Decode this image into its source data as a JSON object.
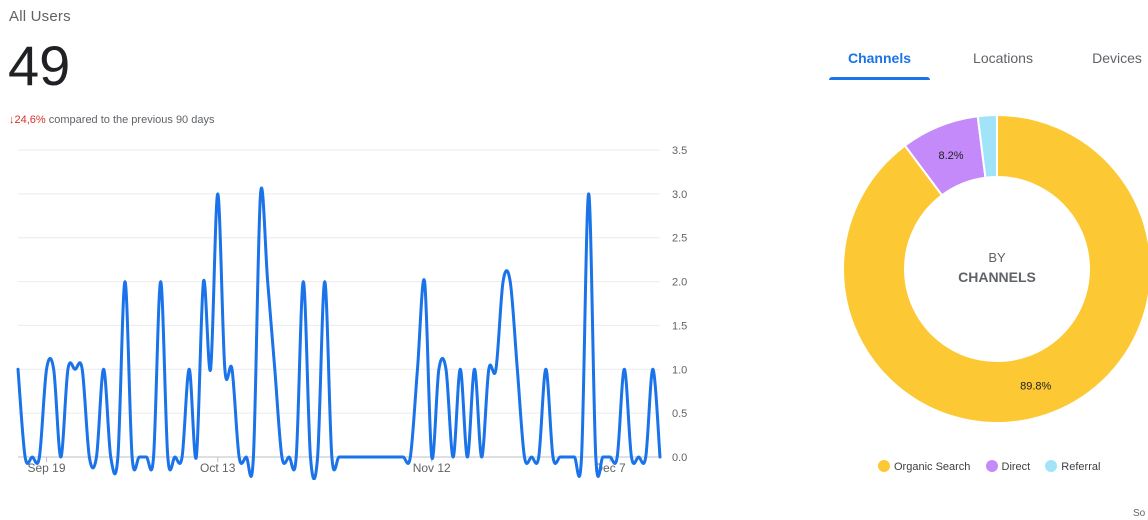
{
  "summary": {
    "label": "All Users",
    "value": "49",
    "delta_arrow": "↓",
    "delta_value": "24,6%",
    "delta_text": " compared to the previous 90 days"
  },
  "tabs": [
    {
      "label": "Channels",
      "active": true
    },
    {
      "label": "Locations",
      "active": false
    },
    {
      "label": "Devices",
      "active": false
    }
  ],
  "footer": {
    "text": "So"
  },
  "colors": {
    "line": "#1a73e8",
    "accent": "#1a73e8",
    "negative": "#d93025"
  },
  "chart_data": [
    {
      "type": "line",
      "title": "",
      "xlabel": "",
      "ylabel": "",
      "ylim": [
        0,
        3.5
      ],
      "yticks": [
        {
          "value": 0,
          "label": "0.0"
        },
        {
          "value": 0.5,
          "label": "0.5"
        },
        {
          "value": 1,
          "label": "1.0"
        },
        {
          "value": 1.5,
          "label": "1.5"
        },
        {
          "value": 2,
          "label": "2.0"
        },
        {
          "value": 2.5,
          "label": "2.5"
        },
        {
          "value": 3,
          "label": "3.0"
        },
        {
          "value": 3.5,
          "label": "3.5"
        }
      ],
      "xticks": [
        {
          "index": 4,
          "label": "Sep 19"
        },
        {
          "index": 28,
          "label": "Oct 13"
        },
        {
          "index": 58,
          "label": "Nov 12"
        },
        {
          "index": 83,
          "label": "Dec 7"
        }
      ],
      "grid": true,
      "y_axis_position": "right",
      "series": [
        {
          "values": [
            1,
            0,
            0,
            0,
            1,
            1,
            0,
            1,
            1,
            1,
            0,
            0,
            1,
            0,
            0,
            2,
            0,
            0,
            0,
            0,
            2,
            0,
            0,
            0,
            1,
            0,
            2,
            1,
            3,
            1,
            1,
            0,
            0,
            0,
            3,
            2,
            1,
            0,
            0,
            0,
            2,
            0,
            0,
            2,
            0,
            0,
            0,
            0,
            0,
            0,
            0,
            0,
            0,
            0,
            0,
            0,
            1,
            2,
            0,
            1,
            1,
            0,
            1,
            0,
            1,
            0,
            1,
            1,
            2,
            2,
            1,
            0,
            0,
            0,
            1,
            0,
            0,
            0,
            0,
            0,
            3,
            0,
            0,
            0,
            0,
            1,
            0,
            0,
            0,
            1,
            0
          ]
        }
      ]
    },
    {
      "type": "pie",
      "title": "",
      "center_label_top": "BY",
      "center_label_bottom": "CHANNELS",
      "slices": [
        {
          "name": "Organic Search",
          "value": 89.8,
          "label": "89.8%",
          "color": "#fcc934"
        },
        {
          "name": "Direct",
          "value": 8.2,
          "label": "8.2%",
          "color": "#c58af9"
        },
        {
          "name": "Referral",
          "value": 2.0,
          "label": "",
          "color": "#a1e4f9"
        }
      ],
      "legend_position": "bottom"
    }
  ]
}
